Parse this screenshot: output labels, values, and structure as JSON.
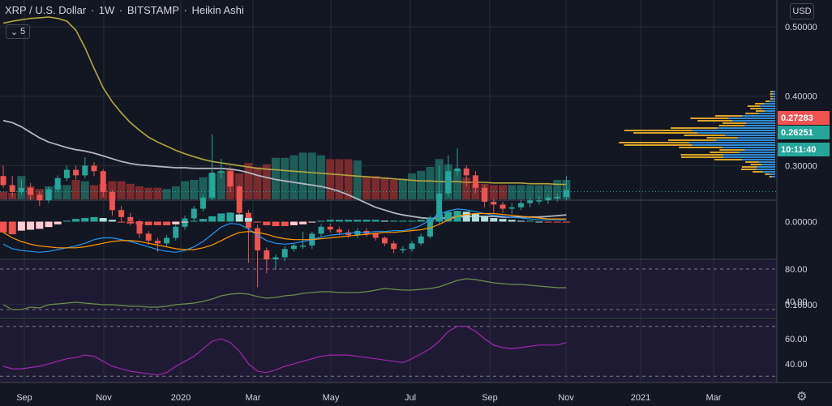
{
  "header": {
    "symbol": "XRP / U.S. Dollar",
    "interval": "1W",
    "exchange": "BITSTAMP",
    "chart_style": "Heikin Ashi",
    "indicator_count": "5"
  },
  "currency_label": "USD",
  "price_tags": [
    {
      "label": "0.27283",
      "color": "#ef5350"
    },
    {
      "label": "0.26251",
      "color": "#26a69a"
    },
    {
      "label": "10:11:40",
      "color": "#26a69a"
    }
  ],
  "price_ticks": [
    "0.50000",
    "0.40000",
    "0.30000",
    "0.10000"
  ],
  "macd_ticks": [
    "0.00000"
  ],
  "rsi_ticks": [
    "80.00",
    "40.00"
  ],
  "osc_ticks": [
    "60.00",
    "40.00"
  ],
  "time_labels": [
    "Sep",
    "Nov",
    "2020",
    "Mar",
    "May",
    "Jul",
    "Sep",
    "Nov",
    "2021",
    "Mar"
  ],
  "colors": {
    "up": "#26a69a",
    "down": "#ef5350",
    "ma_long": "#b5a642",
    "ma_short": "#b2b5be",
    "rsi_line": "#6a8f4e",
    "osc_line": "#9c27b0",
    "macd_line": "#2196f3",
    "signal_line": "#ff9800",
    "background": "#131722"
  },
  "chart_data": [
    {
      "type": "candlestick",
      "title": "XRP / U.S. Dollar · 1W · BITSTAMP · Heikin Ashi",
      "x": [
        "2019-08-26",
        "2019-09-02",
        "2019-09-09",
        "2019-09-16",
        "2019-09-23",
        "2019-09-30",
        "2019-10-07",
        "2019-10-14",
        "2019-10-21",
        "2019-10-28",
        "2019-11-04",
        "2019-11-11",
        "2019-11-18",
        "2019-11-25",
        "2019-12-02",
        "2019-12-09",
        "2019-12-16",
        "2019-12-23",
        "2019-12-30",
        "2020-01-06",
        "2020-01-13",
        "2020-01-20",
        "2020-01-27",
        "2020-02-03",
        "2020-02-10",
        "2020-02-17",
        "2020-02-24",
        "2020-03-02",
        "2020-03-09",
        "2020-03-16",
        "2020-03-23",
        "2020-03-30",
        "2020-04-06",
        "2020-04-13",
        "2020-04-20",
        "2020-04-27",
        "2020-05-04",
        "2020-05-11",
        "2020-05-18",
        "2020-05-25",
        "2020-06-01",
        "2020-06-08",
        "2020-06-15",
        "2020-06-22",
        "2020-06-29",
        "2020-07-06",
        "2020-07-13",
        "2020-07-20",
        "2020-07-27",
        "2020-08-03",
        "2020-08-10",
        "2020-08-17",
        "2020-08-24",
        "2020-08-31",
        "2020-09-07",
        "2020-09-14",
        "2020-09-21",
        "2020-09-28",
        "2020-10-05",
        "2020-10-12",
        "2020-10-19",
        "2020-10-26",
        "2020-11-02"
      ],
      "open": [
        0.285,
        0.272,
        0.262,
        0.268,
        0.258,
        0.25,
        0.266,
        0.282,
        0.294,
        0.286,
        0.3,
        0.292,
        0.262,
        0.236,
        0.226,
        0.22,
        0.202,
        0.192,
        0.188,
        0.196,
        0.212,
        0.224,
        0.238,
        0.254,
        0.29,
        0.292,
        0.27,
        0.232,
        0.21,
        0.178,
        0.165,
        0.168,
        0.18,
        0.185,
        0.185,
        0.202,
        0.212,
        0.208,
        0.204,
        0.2,
        0.206,
        0.202,
        0.196,
        0.188,
        0.18,
        0.18,
        0.188,
        0.198,
        0.222,
        0.26,
        0.292,
        0.296,
        0.286,
        0.268,
        0.248,
        0.244,
        0.238,
        0.24,
        0.246,
        0.25,
        0.25,
        0.254,
        0.255
      ],
      "close": [
        0.272,
        0.262,
        0.268,
        0.258,
        0.25,
        0.266,
        0.282,
        0.294,
        0.286,
        0.3,
        0.292,
        0.262,
        0.236,
        0.226,
        0.22,
        0.202,
        0.192,
        0.188,
        0.196,
        0.212,
        0.224,
        0.238,
        0.254,
        0.29,
        0.292,
        0.27,
        0.232,
        0.21,
        0.178,
        0.165,
        0.168,
        0.18,
        0.185,
        0.185,
        0.202,
        0.212,
        0.208,
        0.204,
        0.2,
        0.206,
        0.202,
        0.196,
        0.188,
        0.18,
        0.18,
        0.188,
        0.198,
        0.222,
        0.26,
        0.292,
        0.296,
        0.286,
        0.268,
        0.248,
        0.244,
        0.238,
        0.24,
        0.246,
        0.25,
        0.25,
        0.254,
        0.255,
        0.265
      ],
      "high": [
        0.3,
        0.285,
        0.28,
        0.275,
        0.262,
        0.27,
        0.286,
        0.3,
        0.3,
        0.312,
        0.305,
        0.295,
        0.265,
        0.242,
        0.232,
        0.222,
        0.206,
        0.196,
        0.2,
        0.215,
        0.228,
        0.242,
        0.258,
        0.345,
        0.31,
        0.298,
        0.272,
        0.236,
        0.215,
        0.182,
        0.172,
        0.184,
        0.188,
        0.205,
        0.205,
        0.216,
        0.216,
        0.212,
        0.208,
        0.21,
        0.21,
        0.204,
        0.198,
        0.192,
        0.184,
        0.192,
        0.202,
        0.228,
        0.3,
        0.315,
        0.325,
        0.3,
        0.292,
        0.272,
        0.252,
        0.248,
        0.246,
        0.25,
        0.254,
        0.256,
        0.258,
        0.26,
        0.285
      ],
      "low": [
        0.268,
        0.255,
        0.258,
        0.25,
        0.242,
        0.246,
        0.262,
        0.278,
        0.28,
        0.282,
        0.285,
        0.255,
        0.228,
        0.22,
        0.214,
        0.196,
        0.186,
        0.176,
        0.184,
        0.192,
        0.208,
        0.22,
        0.234,
        0.25,
        0.282,
        0.262,
        0.225,
        0.16,
        0.125,
        0.145,
        0.15,
        0.162,
        0.176,
        0.18,
        0.18,
        0.198,
        0.204,
        0.2,
        0.196,
        0.196,
        0.198,
        0.192,
        0.184,
        0.174,
        0.174,
        0.176,
        0.185,
        0.195,
        0.215,
        0.255,
        0.285,
        0.27,
        0.26,
        0.24,
        0.232,
        0.232,
        0.23,
        0.236,
        0.24,
        0.244,
        0.245,
        0.248,
        0.25
      ],
      "volume": [
        0.3,
        0.25,
        0.9,
        0.5,
        0.4,
        0.5,
        0.55,
        0.55,
        0.75,
        0.7,
        0.55,
        0.6,
        0.7,
        0.7,
        0.6,
        0.5,
        0.45,
        0.45,
        0.4,
        0.5,
        0.7,
        0.75,
        0.85,
        1.0,
        1.1,
        1.15,
        1.0,
        1.4,
        1.25,
        1.35,
        1.6,
        1.6,
        1.7,
        1.8,
        1.8,
        1.7,
        1.55,
        1.55,
        1.55,
        1.5,
        0.9,
        0.9,
        0.85,
        0.75,
        0.8,
        1.0,
        1.1,
        1.25,
        1.55,
        1.35,
        1.15,
        0.85,
        0.6,
        0.6,
        0.55,
        0.55,
        0.55,
        0.55,
        0.55,
        0.55,
        0.55,
        0.75,
        0.75
      ],
      "ma_long": [
        0.505,
        0.508,
        0.51,
        0.512,
        0.513,
        0.514,
        0.512,
        0.508,
        0.495,
        0.47,
        0.44,
        0.412,
        0.392,
        0.376,
        0.362,
        0.351,
        0.341,
        0.334,
        0.328,
        0.322,
        0.317,
        0.313,
        0.309,
        0.306,
        0.304,
        0.302,
        0.3,
        0.298,
        0.296,
        0.295,
        0.294,
        0.293,
        0.292,
        0.291,
        0.29,
        0.289,
        0.288,
        0.287,
        0.286,
        0.285,
        0.284,
        0.283,
        0.282,
        0.281,
        0.28,
        0.279,
        0.278,
        0.278,
        0.277,
        0.277,
        0.277,
        0.276,
        0.276,
        0.276,
        0.275,
        0.275,
        0.275,
        0.275,
        0.274,
        0.274,
        0.274,
        0.273,
        0.273
      ],
      "ma_short": [
        0.365,
        0.362,
        0.356,
        0.348,
        0.34,
        0.334,
        0.33,
        0.326,
        0.323,
        0.321,
        0.318,
        0.314,
        0.31,
        0.306,
        0.303,
        0.301,
        0.3,
        0.299,
        0.298,
        0.297,
        0.297,
        0.296,
        0.296,
        0.296,
        0.296,
        0.295,
        0.293,
        0.29,
        0.286,
        0.283,
        0.28,
        0.278,
        0.276,
        0.274,
        0.272,
        0.27,
        0.267,
        0.263,
        0.258,
        0.252,
        0.246,
        0.24,
        0.236,
        0.232,
        0.229,
        0.227,
        0.225,
        0.224,
        0.224,
        0.225,
        0.226,
        0.227,
        0.227,
        0.227,
        0.227,
        0.226,
        0.226,
        0.226,
        0.226,
        0.226,
        0.227,
        0.228,
        0.229
      ],
      "ylim": [
        0.06,
        0.54
      ]
    },
    {
      "type": "histogram",
      "title": "",
      "x_ref": "2019-08-26..2020-11-02",
      "values": [
        -0.012,
        -0.014,
        -0.01,
        -0.009,
        -0.008,
        -0.006,
        -0.003,
        0.001,
        0.003,
        0.004,
        0.005,
        0.004,
        0.002,
        -0.001,
        -0.002,
        -0.003,
        -0.004,
        -0.004,
        -0.004,
        -0.003,
        -0.001,
        0.001,
        0.003,
        0.006,
        0.009,
        0.01,
        0.008,
        0.004,
        -0.001,
        -0.004,
        -0.005,
        -0.005,
        -0.004,
        -0.003,
        -0.001,
        0.001,
        0.002,
        0.002,
        0.002,
        0.002,
        0.002,
        0.002,
        0.001,
        0.001,
        0.001,
        0.001,
        0.002,
        0.004,
        0.008,
        0.011,
        0.012,
        0.011,
        0.009,
        0.006,
        0.004,
        0.003,
        0.002,
        0.001,
        0.001,
        0.0,
        -0.001,
        -0.001,
        -0.001
      ],
      "macd": [
        -0.025,
        -0.03,
        -0.032,
        -0.033,
        -0.034,
        -0.033,
        -0.031,
        -0.029,
        -0.027,
        -0.024,
        -0.02,
        -0.018,
        -0.018,
        -0.02,
        -0.022,
        -0.025,
        -0.028,
        -0.031,
        -0.033,
        -0.034,
        -0.032,
        -0.028,
        -0.022,
        -0.014,
        -0.006,
        -0.002,
        -0.003,
        -0.008,
        -0.015,
        -0.021,
        -0.024,
        -0.025,
        -0.024,
        -0.022,
        -0.02,
        -0.017,
        -0.015,
        -0.014,
        -0.013,
        -0.012,
        -0.012,
        -0.011,
        -0.011,
        -0.01,
        -0.01,
        -0.008,
        -0.004,
        0.002,
        0.008,
        0.012,
        0.014,
        0.013,
        0.011,
        0.009,
        0.007,
        0.006,
        0.005,
        0.004,
        0.003,
        0.002,
        0.002,
        0.002,
        0.002
      ],
      "signal": [
        -0.012,
        -0.018,
        -0.022,
        -0.025,
        -0.027,
        -0.028,
        -0.029,
        -0.029,
        -0.029,
        -0.028,
        -0.026,
        -0.024,
        -0.022,
        -0.021,
        -0.021,
        -0.022,
        -0.024,
        -0.026,
        -0.028,
        -0.03,
        -0.031,
        -0.031,
        -0.029,
        -0.026,
        -0.021,
        -0.016,
        -0.012,
        -0.011,
        -0.012,
        -0.014,
        -0.017,
        -0.019,
        -0.02,
        -0.02,
        -0.02,
        -0.019,
        -0.018,
        -0.017,
        -0.016,
        -0.015,
        -0.014,
        -0.013,
        -0.012,
        -0.012,
        -0.011,
        -0.01,
        -0.009,
        -0.007,
        -0.003,
        0.002,
        0.006,
        0.008,
        0.009,
        0.009,
        0.009,
        0.008,
        0.007,
        0.006,
        0.005,
        0.004,
        0.003,
        0.003,
        0.003
      ],
      "ylim": [
        -0.04,
        0.022
      ]
    },
    {
      "type": "line",
      "title": "",
      "values": [
        36,
        30,
        30,
        33,
        32,
        36,
        37,
        38,
        39,
        38,
        37,
        36,
        36,
        35,
        34,
        34,
        33,
        33,
        34,
        36,
        37,
        38,
        40,
        43,
        47,
        49,
        50,
        49,
        46,
        44,
        45,
        47,
        48,
        50,
        51,
        52,
        52,
        51,
        51,
        51,
        52,
        54,
        56,
        55,
        54,
        54,
        55,
        56,
        58,
        62,
        66,
        68,
        67,
        65,
        63,
        62,
        61,
        61,
        60,
        59,
        58,
        57,
        57
      ],
      "ylim": [
        20,
        90
      ]
    },
    {
      "type": "line",
      "title": "",
      "values": [
        38,
        36,
        36,
        37,
        38,
        40,
        42,
        44,
        45,
        47,
        46,
        42,
        38,
        36,
        34,
        33,
        32,
        31,
        33,
        38,
        42,
        46,
        52,
        58,
        60,
        57,
        50,
        40,
        34,
        33,
        35,
        38,
        40,
        42,
        44,
        46,
        47,
        47,
        47,
        46,
        45,
        44,
        43,
        42,
        41,
        44,
        48,
        52,
        58,
        66,
        70,
        70,
        66,
        60,
        55,
        53,
        52,
        53,
        54,
        55,
        55,
        55,
        57
      ],
      "ylim": [
        25,
        75
      ]
    }
  ]
}
